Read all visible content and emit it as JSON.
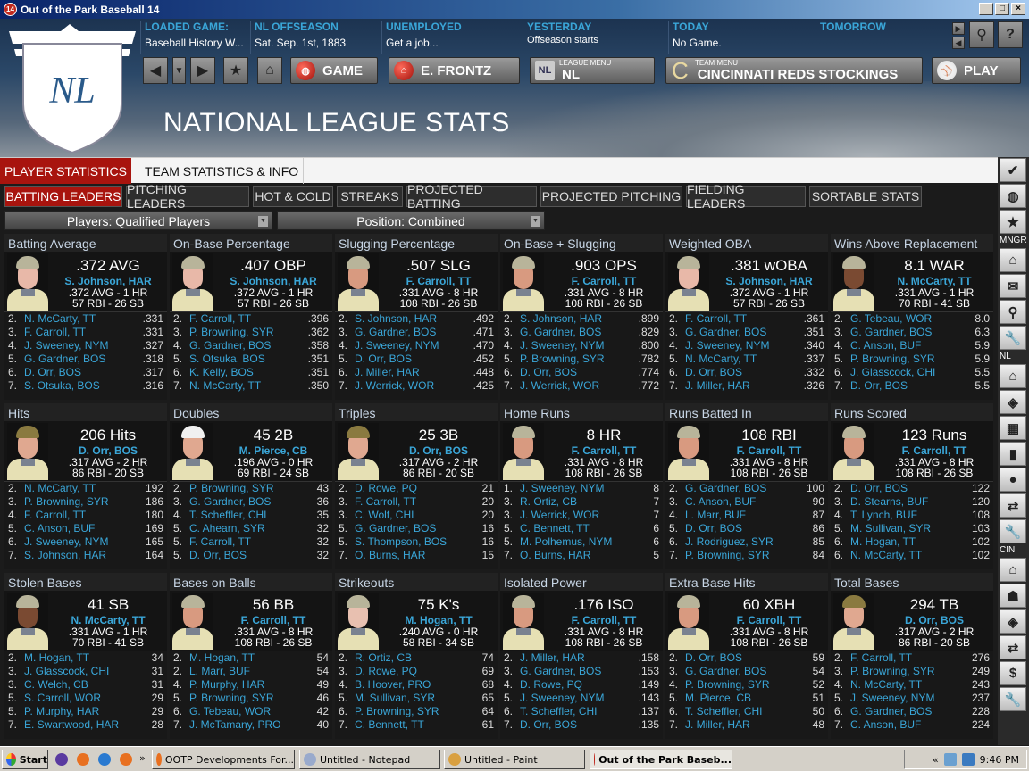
{
  "window": {
    "title": "Out of the Park Baseball 14",
    "app_icon": "14"
  },
  "header": {
    "info": [
      {
        "label": "LOADED GAME:",
        "value": "Baseball History W..."
      },
      {
        "label": "NL  OFFSEASON",
        "value": "Sat. Sep. 1st, 1883"
      },
      {
        "label": "UNEMPLOYED",
        "value": "Get a job..."
      },
      {
        "label": "YESTERDAY",
        "value": "Offseason starts"
      },
      {
        "label": "TODAY",
        "value": "No Game."
      },
      {
        "label": "TOMORROW",
        "value": ""
      }
    ],
    "logo_text": "NL",
    "game_button": "GAME",
    "manager_button": "E. FRONTZ",
    "league_menu": {
      "caption": "LEAGUE MENU",
      "value": "NL"
    },
    "team_menu": {
      "caption": "TEAM MENU",
      "letter": "C",
      "value": "CINCINNATI REDS STOCKINGS"
    },
    "play_button": "PLAY",
    "page_title": "NATIONAL LEAGUE STATS"
  },
  "tabs": [
    {
      "label": "PLAYER STATISTICS",
      "active": true
    },
    {
      "label": "TEAM STATISTICS & INFO",
      "active": false
    }
  ],
  "subtabs": [
    {
      "label": "BATTING LEADERS",
      "active": true
    },
    {
      "label": "PITCHING LEADERS"
    },
    {
      "label": "HOT & COLD"
    },
    {
      "label": "STREAKS"
    },
    {
      "label": "PROJECTED BATTING"
    },
    {
      "label": "PROJECTED PITCHING"
    },
    {
      "label": "FIELDING LEADERS"
    },
    {
      "label": "SORTABLE STATS"
    }
  ],
  "filters": {
    "players": "Players: Qualified Players",
    "position": "Position: Combined"
  },
  "colors": {
    "accent_red": "#a8140e",
    "link_blue": "#3aa6d8"
  },
  "panels": [
    {
      "title": "Batting Average",
      "leader": {
        "value": ".372 AVG",
        "name": "S. Johnson, HAR",
        "line1": ".372 AVG - 1 HR",
        "line2": "57 RBI - 26 SB",
        "skin": "#e8b8a8",
        "cap": "#b8b49a"
      },
      "rows": [
        [
          "2.",
          "N. McCarty, TT",
          ".331"
        ],
        [
          "3.",
          "F. Carroll, TT",
          ".331"
        ],
        [
          "4.",
          "J. Sweeney, NYM",
          ".327"
        ],
        [
          "5.",
          "G. Gardner, BOS",
          ".318"
        ],
        [
          "6.",
          "D. Orr, BOS",
          ".317"
        ],
        [
          "7.",
          "S. Otsuka, BOS",
          ".316"
        ]
      ]
    },
    {
      "title": "On-Base Percentage",
      "leader": {
        "value": ".407 OBP",
        "name": "S. Johnson, HAR",
        "line1": ".372 AVG - 1 HR",
        "line2": "57 RBI - 26 SB",
        "skin": "#e8b8a8",
        "cap": "#b8b49a"
      },
      "rows": [
        [
          "2.",
          "F. Carroll, TT",
          ".396"
        ],
        [
          "3.",
          "P. Browning, SYR",
          ".362"
        ],
        [
          "4.",
          "G. Gardner, BOS",
          ".358"
        ],
        [
          "5.",
          "S. Otsuka, BOS",
          ".351"
        ],
        [
          "6.",
          "K. Kelly, BOS",
          ".351"
        ],
        [
          "7.",
          "N. McCarty, TT",
          ".350"
        ]
      ]
    },
    {
      "title": "Slugging Percentage",
      "leader": {
        "value": ".507 SLG",
        "name": "F. Carroll, TT",
        "line1": ".331 AVG - 8 HR",
        "line2": "108 RBI - 26 SB",
        "skin": "#d89a80",
        "cap": "#b8b49a"
      },
      "rows": [
        [
          "2.",
          "S. Johnson, HAR",
          ".492"
        ],
        [
          "3.",
          "G. Gardner, BOS",
          ".471"
        ],
        [
          "4.",
          "J. Sweeney, NYM",
          ".470"
        ],
        [
          "5.",
          "D. Orr, BOS",
          ".452"
        ],
        [
          "6.",
          "J. Miller, HAR",
          ".448"
        ],
        [
          "7.",
          "J. Werrick, WOR",
          ".425"
        ]
      ]
    },
    {
      "title": "On-Base + Slugging",
      "leader": {
        "value": ".903 OPS",
        "name": "F. Carroll, TT",
        "line1": ".331 AVG - 8 HR",
        "line2": "108 RBI - 26 SB",
        "skin": "#d89a80",
        "cap": "#b8b49a"
      },
      "rows": [
        [
          "2.",
          "S. Johnson, HAR",
          ".899"
        ],
        [
          "3.",
          "G. Gardner, BOS",
          ".829"
        ],
        [
          "4.",
          "J. Sweeney, NYM",
          ".800"
        ],
        [
          "5.",
          "P. Browning, SYR",
          ".782"
        ],
        [
          "6.",
          "D. Orr, BOS",
          ".774"
        ],
        [
          "7.",
          "J. Werrick, WOR",
          ".772"
        ]
      ]
    },
    {
      "title": "Weighted OBA",
      "leader": {
        "value": ".381 wOBA",
        "name": "S. Johnson, HAR",
        "line1": ".372 AVG - 1 HR",
        "line2": "57 RBI - 26 SB",
        "skin": "#e8b8a8",
        "cap": "#b8b49a"
      },
      "rows": [
        [
          "2.",
          "F. Carroll, TT",
          ".361"
        ],
        [
          "3.",
          "G. Gardner, BOS",
          ".351"
        ],
        [
          "4.",
          "J. Sweeney, NYM",
          ".340"
        ],
        [
          "5.",
          "N. McCarty, TT",
          ".337"
        ],
        [
          "6.",
          "D. Orr, BOS",
          ".332"
        ],
        [
          "7.",
          "J. Miller, HAR",
          ".326"
        ]
      ]
    },
    {
      "title": "Wins Above Replacement",
      "leader": {
        "value": "8.1 WAR",
        "name": "N. McCarty, TT",
        "line1": ".331 AVG - 1 HR",
        "line2": "70 RBI - 41 SB",
        "skin": "#7a4a32",
        "cap": "#b8b49a"
      },
      "rows": [
        [
          "2.",
          "G. Tebeau, WOR",
          "8.0"
        ],
        [
          "3.",
          "G. Gardner, BOS",
          "6.3"
        ],
        [
          "4.",
          "C. Anson, BUF",
          "5.9"
        ],
        [
          "5.",
          "P. Browning, SYR",
          "5.9"
        ],
        [
          "6.",
          "J. Glasscock, CHI",
          "5.5"
        ],
        [
          "7.",
          "D. Orr, BOS",
          "5.5"
        ]
      ]
    },
    {
      "title": "Hits",
      "leader": {
        "value": "206 Hits",
        "name": "D. Orr, BOS",
        "line1": ".317 AVG - 2 HR",
        "line2": "86 RBI - 20 SB",
        "skin": "#e0a890",
        "cap": "#8a7a40"
      },
      "rows": [
        [
          "2.",
          "N. McCarty, TT",
          "192"
        ],
        [
          "3.",
          "P. Browning, SYR",
          "186"
        ],
        [
          "4.",
          "F. Carroll, TT",
          "180"
        ],
        [
          "5.",
          "C. Anson, BUF",
          "169"
        ],
        [
          "6.",
          "J. Sweeney, NYM",
          "165"
        ],
        [
          "7.",
          "S. Johnson, HAR",
          "164"
        ]
      ]
    },
    {
      "title": "Doubles",
      "leader": {
        "value": "45 2B",
        "name": "M. Pierce, CB",
        "line1": ".196 AVG - 0 HR",
        "line2": "69 RBI - 24 SB",
        "skin": "#e0a890",
        "cap": "#f0f0f0"
      },
      "rows": [
        [
          "2.",
          "P. Browning, SYR",
          "43"
        ],
        [
          "3.",
          "G. Gardner, BOS",
          "36"
        ],
        [
          "4.",
          "T. Scheffler, CHI",
          "35"
        ],
        [
          "5.",
          "C. Ahearn, SYR",
          "32"
        ],
        [
          "5.",
          "F. Carroll, TT",
          "32"
        ],
        [
          "5.",
          "D. Orr, BOS",
          "32"
        ]
      ]
    },
    {
      "title": "Triples",
      "leader": {
        "value": "25 3B",
        "name": "D. Orr, BOS",
        "line1": ".317 AVG - 2 HR",
        "line2": "86 RBI - 20 SB",
        "skin": "#e0a890",
        "cap": "#8a7a40"
      },
      "rows": [
        [
          "2.",
          "D. Rowe, PQ",
          "21"
        ],
        [
          "3.",
          "F. Carroll, TT",
          "20"
        ],
        [
          "3.",
          "C. Wolf, CHI",
          "20"
        ],
        [
          "5.",
          "G. Gardner, BOS",
          "16"
        ],
        [
          "5.",
          "S. Thompson, BOS",
          "16"
        ],
        [
          "7.",
          "O. Burns, HAR",
          "15"
        ]
      ]
    },
    {
      "title": "Home Runs",
      "leader": {
        "value": "8 HR",
        "name": "F. Carroll, TT",
        "line1": ".331 AVG - 8 HR",
        "line2": "108 RBI - 26 SB",
        "skin": "#d89a80",
        "cap": "#b8b49a"
      },
      "rows": [
        [
          "1.",
          "J. Sweeney, NYM",
          "8"
        ],
        [
          "3.",
          "R. Ortiz, CB",
          "7"
        ],
        [
          "3.",
          "J. Werrick, WOR",
          "7"
        ],
        [
          "5.",
          "C. Bennett, TT",
          "6"
        ],
        [
          "5.",
          "M. Polhemus, NYM",
          "6"
        ],
        [
          "7.",
          "O. Burns, HAR",
          "5"
        ]
      ]
    },
    {
      "title": "Runs Batted In",
      "leader": {
        "value": "108 RBI",
        "name": "F. Carroll, TT",
        "line1": ".331 AVG - 8 HR",
        "line2": "108 RBI - 26 SB",
        "skin": "#d89a80",
        "cap": "#b8b49a"
      },
      "rows": [
        [
          "2.",
          "G. Gardner, BOS",
          "100"
        ],
        [
          "3.",
          "C. Anson, BUF",
          "90"
        ],
        [
          "4.",
          "L. Marr, BUF",
          "87"
        ],
        [
          "5.",
          "D. Orr, BOS",
          "86"
        ],
        [
          "6.",
          "J. Rodriguez, SYR",
          "85"
        ],
        [
          "7.",
          "P. Browning, SYR",
          "84"
        ]
      ]
    },
    {
      "title": "Runs Scored",
      "leader": {
        "value": "123 Runs",
        "name": "F. Carroll, TT",
        "line1": ".331 AVG - 8 HR",
        "line2": "108 RBI - 26 SB",
        "skin": "#d89a80",
        "cap": "#b8b49a"
      },
      "rows": [
        [
          "2.",
          "D. Orr, BOS",
          "122"
        ],
        [
          "3.",
          "D. Stearns, BUF",
          "120"
        ],
        [
          "4.",
          "T. Lynch, BUF",
          "108"
        ],
        [
          "5.",
          "M. Sullivan, SYR",
          "103"
        ],
        [
          "6.",
          "M. Hogan, TT",
          "102"
        ],
        [
          "6.",
          "N. McCarty, TT",
          "102"
        ]
      ]
    },
    {
      "title": "Stolen Bases",
      "leader": {
        "value": "41 SB",
        "name": "N. McCarty, TT",
        "line1": ".331 AVG - 1 HR",
        "line2": "70 RBI - 41 SB",
        "skin": "#7a4a32",
        "cap": "#b8b49a"
      },
      "rows": [
        [
          "2.",
          "M. Hogan, TT",
          "34"
        ],
        [
          "3.",
          "J. Glasscock, CHI",
          "31"
        ],
        [
          "3.",
          "C. Welch, CB",
          "31"
        ],
        [
          "5.",
          "S. Carroll, WOR",
          "29"
        ],
        [
          "5.",
          "P. Murphy, HAR",
          "29"
        ],
        [
          "7.",
          "E. Swartwood, HAR",
          "28"
        ]
      ]
    },
    {
      "title": "Bases on Balls",
      "leader": {
        "value": "56 BB",
        "name": "F. Carroll, TT",
        "line1": ".331 AVG - 8 HR",
        "line2": "108 RBI - 26 SB",
        "skin": "#d89a80",
        "cap": "#b8b49a"
      },
      "rows": [
        [
          "2.",
          "M. Hogan, TT",
          "54"
        ],
        [
          "2.",
          "L. Marr, BUF",
          "54"
        ],
        [
          "4.",
          "P. Murphy, HAR",
          "49"
        ],
        [
          "5.",
          "P. Browning, SYR",
          "46"
        ],
        [
          "6.",
          "G. Tebeau, WOR",
          "42"
        ],
        [
          "7.",
          "J. McTamany, PRO",
          "40"
        ]
      ]
    },
    {
      "title": "Strikeouts",
      "leader": {
        "value": "75 K's",
        "name": "M. Hogan, TT",
        "line1": ".240 AVG - 0 HR",
        "line2": "58 RBI - 34 SB",
        "skin": "#e8c0b0",
        "cap": "#b8b49a"
      },
      "rows": [
        [
          "2.",
          "R. Ortiz, CB",
          "74"
        ],
        [
          "3.",
          "D. Rowe, PQ",
          "69"
        ],
        [
          "4.",
          "B. Hoover, PRO",
          "68"
        ],
        [
          "5.",
          "M. Sullivan, SYR",
          "65"
        ],
        [
          "6.",
          "P. Browning, SYR",
          "64"
        ],
        [
          "7.",
          "C. Bennett, TT",
          "61"
        ]
      ]
    },
    {
      "title": "Isolated Power",
      "leader": {
        "value": ".176 ISO",
        "name": "F. Carroll, TT",
        "line1": ".331 AVG - 8 HR",
        "line2": "108 RBI - 26 SB",
        "skin": "#d89a80",
        "cap": "#b8b49a"
      },
      "rows": [
        [
          "2.",
          "J. Miller, HAR",
          ".158"
        ],
        [
          "3.",
          "G. Gardner, BOS",
          ".153"
        ],
        [
          "4.",
          "D. Rowe, PQ",
          ".149"
        ],
        [
          "5.",
          "J. Sweeney, NYM",
          ".143"
        ],
        [
          "6.",
          "T. Scheffler, CHI",
          ".137"
        ],
        [
          "7.",
          "D. Orr, BOS",
          ".135"
        ]
      ]
    },
    {
      "title": "Extra Base Hits",
      "leader": {
        "value": "60 XBH",
        "name": "F. Carroll, TT",
        "line1": ".331 AVG - 8 HR",
        "line2": "108 RBI - 26 SB",
        "skin": "#d89a80",
        "cap": "#b8b49a"
      },
      "rows": [
        [
          "2.",
          "D. Orr, BOS",
          "59"
        ],
        [
          "3.",
          "G. Gardner, BOS",
          "54"
        ],
        [
          "4.",
          "P. Browning, SYR",
          "52"
        ],
        [
          "5.",
          "M. Pierce, CB",
          "51"
        ],
        [
          "6.",
          "T. Scheffler, CHI",
          "50"
        ],
        [
          "7.",
          "J. Miller, HAR",
          "48"
        ]
      ]
    },
    {
      "title": "Total Bases",
      "leader": {
        "value": "294 TB",
        "name": "D. Orr, BOS",
        "line1": ".317 AVG - 2 HR",
        "line2": "86 RBI - 20 SB",
        "skin": "#e0a890",
        "cap": "#8a7a40"
      },
      "rows": [
        [
          "2.",
          "F. Carroll, TT",
          "276"
        ],
        [
          "3.",
          "P. Browning, SYR",
          "249"
        ],
        [
          "4.",
          "N. McCarty, TT",
          "243"
        ],
        [
          "5.",
          "J. Sweeney, NYM",
          "237"
        ],
        [
          "6.",
          "G. Gardner, BOS",
          "228"
        ],
        [
          "7.",
          "C. Anson, BUF",
          "224"
        ]
      ]
    }
  ],
  "sidebar": [
    {
      "icon": "check-icon",
      "glyph": "✔"
    },
    {
      "icon": "globe-icon",
      "glyph": "◍"
    },
    {
      "icon": "star-icon",
      "glyph": "★"
    },
    {
      "label": "MNGR"
    },
    {
      "icon": "home-icon",
      "glyph": "⌂"
    },
    {
      "icon": "mail-icon",
      "glyph": "✉"
    },
    {
      "icon": "search-icon",
      "glyph": "⚲"
    },
    {
      "icon": "wrench-icon",
      "glyph": "🔧"
    },
    {
      "label": "NL"
    },
    {
      "icon": "home-icon",
      "glyph": "⌂"
    },
    {
      "icon": "diamond-icon",
      "glyph": "◈"
    },
    {
      "icon": "grid-icon",
      "glyph": "▦"
    },
    {
      "icon": "bar-chart-icon",
      "glyph": "▮"
    },
    {
      "icon": "baseball-icon",
      "glyph": "●"
    },
    {
      "icon": "transfer-icon",
      "glyph": "⇄"
    },
    {
      "icon": "wrench-icon",
      "glyph": "🔧"
    },
    {
      "label": "CIN"
    },
    {
      "icon": "home-icon",
      "glyph": "⌂"
    },
    {
      "icon": "player-icon",
      "glyph": "☗"
    },
    {
      "icon": "diamond-icon",
      "glyph": "◈"
    },
    {
      "icon": "transfer-icon",
      "glyph": "⇄"
    },
    {
      "icon": "dollar-icon",
      "glyph": "$"
    },
    {
      "icon": "wrench-icon",
      "glyph": "🔧"
    }
  ],
  "taskbar": {
    "start": "Start",
    "items": [
      {
        "label": "OOTP Developments For..."
      },
      {
        "label": "Untitled - Notepad"
      },
      {
        "label": "Untitled - Paint"
      },
      {
        "label": "Out of the Park Baseb...",
        "active": true
      }
    ],
    "clock": "9:46 PM"
  }
}
